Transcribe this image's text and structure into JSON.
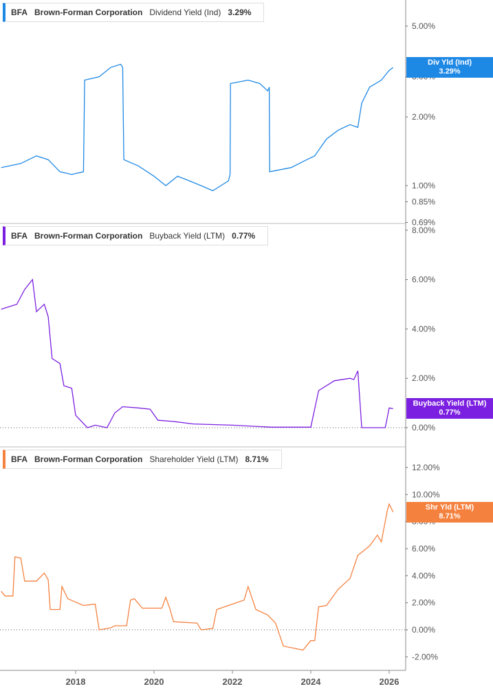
{
  "chart_data": [
    {
      "type": "line",
      "ticker": "BFA",
      "company": "Brown-Forman Corporation",
      "metric": "Dividend Yield (Ind)",
      "value_label": "3.29%",
      "tag_label": "Div Yld (Ind)",
      "color": "#1e88e5",
      "scale": "log",
      "yticks": [
        "5.00%",
        "3.00%",
        "2.00%",
        "1.00%",
        "0.85%",
        "0.69%"
      ],
      "ytick_values": [
        5,
        3,
        2,
        1,
        0.85,
        0.69
      ],
      "ylim": [
        0.69,
        6
      ],
      "x": [
        2016.1,
        2016.6,
        2017.0,
        2017.3,
        2017.6,
        2017.9,
        2018.2,
        2018.23,
        2018.6,
        2018.9,
        2019.15,
        2019.2,
        2019.23,
        2019.6,
        2020.0,
        2020.3,
        2020.6,
        2020.9,
        2021.2,
        2021.5,
        2021.9,
        2021.94,
        2021.95,
        2022.4,
        2022.7,
        2022.9,
        2022.94,
        2022.95,
        2023.5,
        2023.9,
        2024.1,
        2024.4,
        2024.7,
        2025.0,
        2025.2,
        2025.3,
        2025.5,
        2025.8,
        2026.0,
        2026.1
      ],
      "values": [
        1.2,
        1.25,
        1.35,
        1.3,
        1.15,
        1.12,
        1.15,
        2.9,
        3.0,
        3.3,
        3.4,
        3.3,
        1.3,
        1.22,
        1.1,
        1.0,
        1.1,
        1.05,
        1.0,
        0.95,
        1.05,
        1.12,
        2.8,
        2.9,
        2.8,
        2.6,
        2.7,
        1.15,
        1.2,
        1.3,
        1.35,
        1.6,
        1.75,
        1.85,
        1.8,
        2.3,
        2.7,
        2.9,
        3.2,
        3.29
      ]
    },
    {
      "type": "line",
      "ticker": "BFA",
      "company": "Brown-Forman Corporation",
      "metric": "Buyback Yield (LTM)",
      "value_label": "0.77%",
      "tag_label": "Buyback Yield (LTM)",
      "color": "#7b1fe0",
      "scale": "linear",
      "yticks": [
        "8.00%",
        "6.00%",
        "4.00%",
        "2.00%",
        "0.00%"
      ],
      "ytick_values": [
        8,
        6,
        4,
        2,
        0
      ],
      "ylim": [
        -0.3,
        8.2
      ],
      "x": [
        2016.1,
        2016.5,
        2016.7,
        2016.9,
        2017.0,
        2017.2,
        2017.3,
        2017.4,
        2017.6,
        2017.7,
        2017.9,
        2018.0,
        2018.3,
        2018.5,
        2018.8,
        2019.0,
        2019.2,
        2019.6,
        2019.9,
        2020.1,
        2020.5,
        2021.0,
        2022.0,
        2023.0,
        2024.0,
        2024.2,
        2024.6,
        2025.0,
        2025.1,
        2025.2,
        2025.3,
        2025.9,
        2026.0,
        2026.1
      ],
      "values": [
        4.8,
        5.0,
        5.6,
        6.0,
        4.7,
        5.0,
        4.5,
        2.8,
        2.6,
        1.7,
        1.6,
        0.5,
        0.0,
        0.1,
        0.0,
        0.6,
        0.85,
        0.8,
        0.75,
        0.3,
        0.25,
        0.15,
        0.1,
        0.02,
        0.02,
        1.5,
        1.9,
        2.0,
        1.95,
        2.3,
        0.0,
        0.0,
        0.8,
        0.77
      ]
    },
    {
      "type": "line",
      "ticker": "BFA",
      "company": "Brown-Forman Corporation",
      "metric": "Shareholder Yield (LTM)",
      "value_label": "8.71%",
      "tag_label": "Shr Yld (LTM)",
      "color": "#f5813f",
      "scale": "linear",
      "yticks": [
        "12.00%",
        "10.00%",
        "8.00%",
        "6.00%",
        "4.00%",
        "2.00%",
        "0.00%",
        "-2.00%"
      ],
      "ytick_values": [
        12,
        10,
        8,
        6,
        4,
        2,
        0,
        -2
      ],
      "ylim": [
        -3,
        13.5
      ],
      "x": [
        2016.1,
        2016.2,
        2016.4,
        2016.45,
        2016.6,
        2016.7,
        2017.0,
        2017.2,
        2017.3,
        2017.35,
        2017.6,
        2017.65,
        2017.8,
        2018.2,
        2018.5,
        2018.6,
        2018.9,
        2019.0,
        2019.3,
        2019.4,
        2019.5,
        2019.7,
        2020.2,
        2020.3,
        2020.4,
        2020.5,
        2021.1,
        2021.2,
        2021.5,
        2021.6,
        2022.0,
        2022.3,
        2022.4,
        2022.6,
        2022.9,
        2023.1,
        2023.3,
        2023.8,
        2024.0,
        2024.1,
        2024.2,
        2024.4,
        2024.7,
        2025.0,
        2025.2,
        2025.5,
        2025.7,
        2025.8,
        2025.95,
        2026.0,
        2026.1
      ],
      "values": [
        2.85,
        2.5,
        2.5,
        5.4,
        5.3,
        3.6,
        3.6,
        4.2,
        3.7,
        1.5,
        1.5,
        3.2,
        2.3,
        1.8,
        1.9,
        0.0,
        0.15,
        0.3,
        0.3,
        2.2,
        2.3,
        1.6,
        1.6,
        2.4,
        1.6,
        0.6,
        0.5,
        0.0,
        0.1,
        1.5,
        1.9,
        2.2,
        3.2,
        1.5,
        1.1,
        0.5,
        -1.2,
        -1.5,
        -0.8,
        -0.8,
        1.7,
        1.8,
        3.0,
        3.8,
        5.5,
        6.2,
        7.0,
        6.5,
        8.8,
        9.3,
        8.71
      ]
    }
  ],
  "xaxis": {
    "ticks": [
      "2018",
      "2020",
      "2022",
      "2024",
      "2026"
    ],
    "tick_values": [
      2018,
      2020,
      2022,
      2024,
      2026
    ]
  }
}
